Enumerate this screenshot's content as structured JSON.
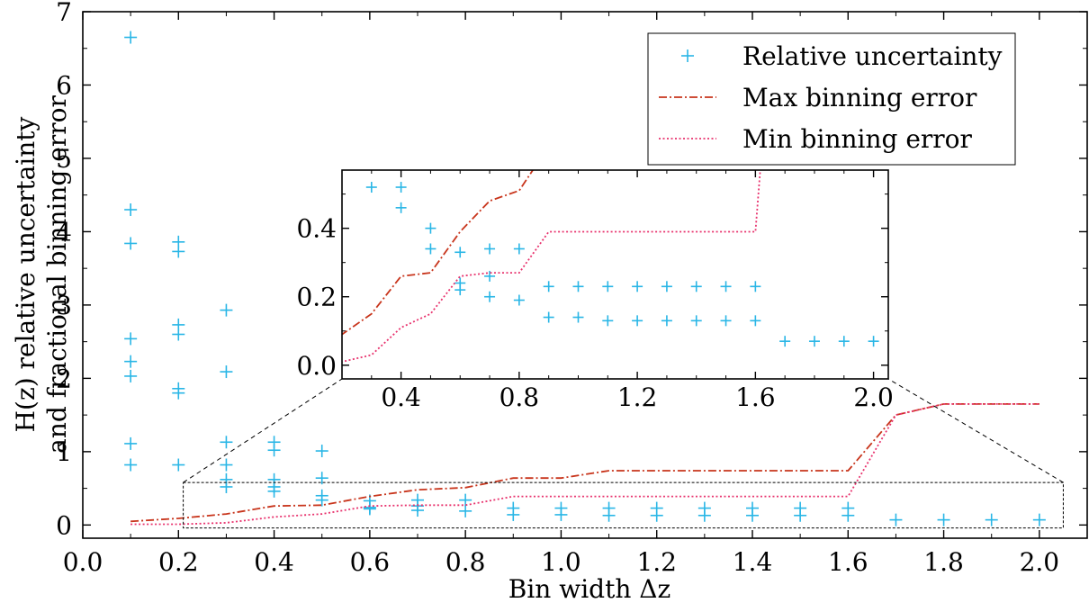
{
  "chart_data": {
    "type": "scatter",
    "title": "",
    "xlabel": "Bin width Δz",
    "ylabel_line1": "H(z) relative uncertainty",
    "ylabel_line2": "and fractional binning error",
    "xlim": [
      0.0,
      2.1
    ],
    "ylim": [
      -0.18,
      7.0
    ],
    "xticks": [
      0.0,
      0.2,
      0.4,
      0.6,
      0.8,
      1.0,
      1.2,
      1.4,
      1.6,
      1.8,
      2.0
    ],
    "xtick_labels": [
      "0.0",
      "0.2",
      "0.4",
      "0.6",
      "0.8",
      "1.0",
      "1.2",
      "1.4",
      "1.6",
      "1.8",
      "2.0"
    ],
    "yticks": [
      0,
      1,
      2,
      3,
      4,
      5,
      6,
      7
    ],
    "ytick_labels": [
      "0",
      "1",
      "2",
      "3",
      "4",
      "5",
      "6",
      "7"
    ],
    "grid": false,
    "legend": {
      "placement": "top-right"
    },
    "series": [
      {
        "name": "Relative uncertainty",
        "kind": "scatter",
        "marker": "plus",
        "color": "#29B6E6",
        "points": [
          [
            0.1,
            6.65
          ],
          [
            0.1,
            4.3
          ],
          [
            0.1,
            3.84
          ],
          [
            0.1,
            2.54
          ],
          [
            0.1,
            2.23
          ],
          [
            0.1,
            2.03
          ],
          [
            0.1,
            1.11
          ],
          [
            0.1,
            0.82
          ],
          [
            0.2,
            3.86
          ],
          [
            0.2,
            3.73
          ],
          [
            0.2,
            2.73
          ],
          [
            0.2,
            2.6
          ],
          [
            0.2,
            1.86
          ],
          [
            0.2,
            1.8
          ],
          [
            0.2,
            0.82
          ],
          [
            0.3,
            2.93
          ],
          [
            0.3,
            2.09
          ],
          [
            0.3,
            1.13
          ],
          [
            0.3,
            0.82
          ],
          [
            0.3,
            0.62
          ],
          [
            0.3,
            0.52
          ],
          [
            0.4,
            1.13
          ],
          [
            0.4,
            1.02
          ],
          [
            0.4,
            0.62
          ],
          [
            0.4,
            0.52
          ],
          [
            0.4,
            0.46
          ],
          [
            0.5,
            1.01
          ],
          [
            0.5,
            0.64
          ],
          [
            0.5,
            0.4
          ],
          [
            0.5,
            0.34
          ],
          [
            0.6,
            0.33
          ],
          [
            0.6,
            0.24
          ],
          [
            0.6,
            0.22
          ],
          [
            0.7,
            0.34
          ],
          [
            0.7,
            0.26
          ],
          [
            0.7,
            0.2
          ],
          [
            0.8,
            0.34
          ],
          [
            0.8,
            0.19
          ],
          [
            0.9,
            0.23
          ],
          [
            0.9,
            0.14
          ],
          [
            1.0,
            0.23
          ],
          [
            1.0,
            0.14
          ],
          [
            1.1,
            0.23
          ],
          [
            1.1,
            0.13
          ],
          [
            1.2,
            0.23
          ],
          [
            1.2,
            0.13
          ],
          [
            1.3,
            0.23
          ],
          [
            1.3,
            0.13
          ],
          [
            1.4,
            0.23
          ],
          [
            1.4,
            0.13
          ],
          [
            1.5,
            0.23
          ],
          [
            1.5,
            0.13
          ],
          [
            1.6,
            0.23
          ],
          [
            1.6,
            0.13
          ],
          [
            1.7,
            0.07
          ],
          [
            1.8,
            0.07
          ],
          [
            1.9,
            0.07
          ],
          [
            2.0,
            0.07
          ]
        ]
      },
      {
        "name": "Max binning error",
        "kind": "line",
        "style": "dashdot",
        "color": "#C8351C",
        "points": [
          [
            0.1,
            0.05
          ],
          [
            0.2,
            0.09
          ],
          [
            0.3,
            0.15
          ],
          [
            0.4,
            0.26
          ],
          [
            0.5,
            0.27
          ],
          [
            0.6,
            0.39
          ],
          [
            0.7,
            0.48
          ],
          [
            0.8,
            0.51
          ],
          [
            0.9,
            0.64
          ],
          [
            1.0,
            0.64
          ],
          [
            1.1,
            0.74
          ],
          [
            1.2,
            0.74
          ],
          [
            1.3,
            0.74
          ],
          [
            1.4,
            0.74
          ],
          [
            1.5,
            0.74
          ],
          [
            1.6,
            0.74
          ],
          [
            1.7,
            1.5
          ],
          [
            1.8,
            1.65
          ],
          [
            1.9,
            1.65
          ],
          [
            2.0,
            1.65
          ]
        ]
      },
      {
        "name": "Min binning error",
        "kind": "line",
        "style": "dotted",
        "color": "#E8336E",
        "points": [
          [
            0.1,
            0.01
          ],
          [
            0.2,
            0.01
          ],
          [
            0.3,
            0.03
          ],
          [
            0.4,
            0.11
          ],
          [
            0.5,
            0.15
          ],
          [
            0.6,
            0.26
          ],
          [
            0.7,
            0.27
          ],
          [
            0.8,
            0.27
          ],
          [
            0.9,
            0.39
          ],
          [
            1.0,
            0.39
          ],
          [
            1.1,
            0.39
          ],
          [
            1.2,
            0.39
          ],
          [
            1.3,
            0.39
          ],
          [
            1.4,
            0.39
          ],
          [
            1.5,
            0.39
          ],
          [
            1.6,
            0.39
          ],
          [
            1.7,
            1.5
          ],
          [
            1.8,
            1.65
          ],
          [
            1.9,
            1.65
          ],
          [
            2.0,
            1.65
          ]
        ]
      }
    ],
    "zoom_region": {
      "xlim": [
        0.21,
        2.05
      ],
      "ylim": [
        -0.04,
        0.58
      ]
    },
    "inset": {
      "xlim": [
        0.2,
        2.05
      ],
      "ylim": [
        -0.04,
        0.57
      ],
      "xticks": [
        0.4,
        0.8,
        1.2,
        1.6,
        2.0
      ],
      "xtick_labels": [
        "0.4",
        "0.8",
        "1.2",
        "1.6",
        "2.0"
      ],
      "yticks": [
        0.0,
        0.2,
        0.4
      ],
      "ytick_labels": [
        "0.0",
        "0.2",
        "0.4"
      ]
    }
  }
}
